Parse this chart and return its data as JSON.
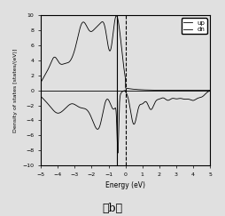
{
  "xlim": [
    -5,
    5
  ],
  "ylim": [
    -10,
    10
  ],
  "xlabel": "Energy (eV)",
  "ylabel": "Density of states [states/(eV)]",
  "xticks": [
    -5,
    -4,
    -3,
    -2,
    -1,
    0,
    1,
    2,
    3,
    4,
    5
  ],
  "yticks": [
    -10,
    -8,
    -6,
    -4,
    -2,
    0,
    2,
    4,
    6,
    8,
    10
  ],
  "legend_labels": [
    "up",
    "dn"
  ],
  "vline_dashed_x": 0,
  "vline_solid_x": -0.5,
  "subtitle": "（b）",
  "bg_color": "#e8e8e8",
  "line_color": "#000000",
  "title_fontsize": 10
}
